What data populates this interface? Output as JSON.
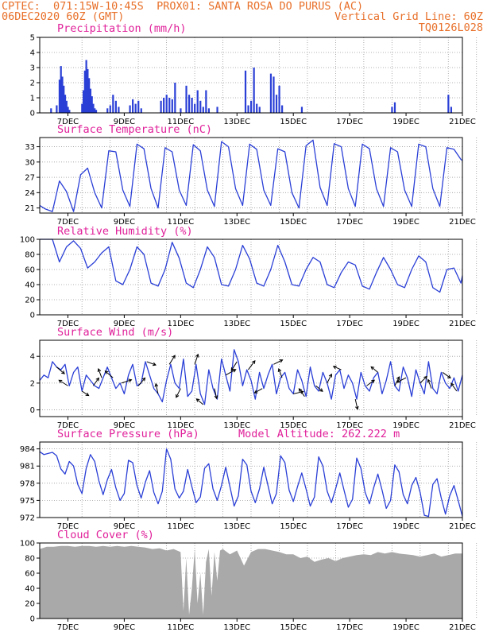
{
  "header": {
    "line1_left": "CPTEC:  071:15W-10:45S",
    "line1_right": "PROX01: SANTA ROSA DO PURUS (AC)",
    "line2_left": "06DEC2020 60Z (GMT)",
    "line2_right": "Vertical Grid Line: 60Z",
    "line3_right": "TQ0126L028"
  },
  "colors": {
    "line": "#2a3fd6",
    "bar": "#2a3fd6",
    "cloud": "#a9a9a9",
    "title": "#e0209a",
    "header": "#e8702a"
  },
  "chart_data": [
    {
      "type": "bar",
      "title": "Precipitation (mm/h)",
      "ylim": [
        0,
        5
      ],
      "yticks": [
        0,
        1,
        2,
        3,
        4,
        5
      ],
      "xlim": [
        6,
        21
      ],
      "xticks": [
        "7DEC",
        "9DEC",
        "11DEC",
        "13DEC",
        "15DEC",
        "17DEC",
        "19DEC",
        "21DEC"
      ],
      "x": [
        6.4,
        6.6,
        6.7,
        6.75,
        6.8,
        6.85,
        6.9,
        6.95,
        7.0,
        7.05,
        7.5,
        7.55,
        7.6,
        7.65,
        7.7,
        7.75,
        7.8,
        7.85,
        7.9,
        7.95,
        8.0,
        8.4,
        8.5,
        8.6,
        8.7,
        8.8,
        9.2,
        9.3,
        9.4,
        9.5,
        9.6,
        10.3,
        10.4,
        10.5,
        10.6,
        10.7,
        10.8,
        11.0,
        11.2,
        11.3,
        11.4,
        11.5,
        11.6,
        11.7,
        11.8,
        11.9,
        12.0,
        12.3,
        13.3,
        13.4,
        13.5,
        13.6,
        13.7,
        13.8,
        14.2,
        14.3,
        14.4,
        14.5,
        14.6,
        15.3,
        18.5,
        18.6,
        20.5,
        20.6
      ],
      "values": [
        0.3,
        0.5,
        2.2,
        3.1,
        2.4,
        1.8,
        1.2,
        0.8,
        0.4,
        0.2,
        0.6,
        1.5,
        2.8,
        3.5,
        2.9,
        2.3,
        1.6,
        1.1,
        0.6,
        0.3,
        0.2,
        0.3,
        0.5,
        1.2,
        0.8,
        0.4,
        0.5,
        0.9,
        0.6,
        0.8,
        0.3,
        0.8,
        1.0,
        1.2,
        1.0,
        0.9,
        2.0,
        0.3,
        1.8,
        1.2,
        1.0,
        0.6,
        1.5,
        0.8,
        0.4,
        1.5,
        0.3,
        0.4,
        2.8,
        0.5,
        0.8,
        3.0,
        0.6,
        0.4,
        2.6,
        2.4,
        1.2,
        1.8,
        0.5,
        0.4,
        0.4,
        0.7,
        1.2,
        0.4
      ]
    },
    {
      "type": "line",
      "title": "Surface Temperature (nC)",
      "ylim": [
        20,
        34.8
      ],
      "yticks": [
        21,
        24,
        27,
        30,
        33
      ],
      "xlim": [
        6,
        21
      ],
      "xticks": [
        "7DEC",
        "9DEC",
        "11DEC",
        "13DEC",
        "15DEC",
        "17DEC",
        "19DEC",
        "21DEC"
      ],
      "x": [
        6.0,
        6.2,
        6.45,
        6.7,
        6.95,
        7.2,
        7.45,
        7.7,
        7.95,
        8.2,
        8.45,
        8.7,
        8.95,
        9.2,
        9.45,
        9.7,
        9.95,
        10.2,
        10.45,
        10.7,
        10.95,
        11.2,
        11.45,
        11.7,
        11.95,
        12.2,
        12.45,
        12.7,
        12.95,
        13.2,
        13.45,
        13.7,
        13.95,
        14.2,
        14.45,
        14.7,
        14.95,
        15.2,
        15.45,
        15.7,
        15.95,
        16.2,
        16.45,
        16.7,
        16.95,
        17.2,
        17.45,
        17.7,
        17.95,
        18.2,
        18.45,
        18.7,
        18.95,
        19.2,
        19.45,
        19.7,
        19.95,
        20.2,
        20.45,
        20.7,
        20.95,
        21.0
      ],
      "values": [
        21.5,
        20.8,
        20.3,
        26.3,
        24.2,
        20.3,
        27.5,
        28.8,
        24.0,
        21.0,
        32.2,
        32.0,
        24.5,
        21.3,
        33.5,
        32.6,
        24.8,
        21.0,
        32.8,
        32.0,
        24.5,
        21.5,
        33.4,
        32.2,
        24.5,
        21.3,
        34.0,
        33.0,
        24.8,
        21.5,
        33.5,
        32.5,
        24.5,
        21.5,
        32.6,
        32.0,
        24.0,
        21.0,
        33.2,
        34.3,
        25.0,
        21.5,
        33.6,
        33.0,
        24.8,
        21.3,
        33.5,
        32.6,
        24.8,
        21.3,
        32.8,
        32.0,
        24.5,
        21.3,
        33.5,
        33.0,
        24.8,
        21.3,
        32.8,
        32.5,
        30.5,
        30.3
      ]
    },
    {
      "type": "line",
      "title": "Relative Humidity (%)",
      "ylim": [
        0,
        100
      ],
      "yticks": [
        0,
        20,
        40,
        60,
        80,
        100
      ],
      "xlim": [
        6,
        21
      ],
      "xticks": [
        "7DEC",
        "9DEC",
        "11DEC",
        "13DEC",
        "15DEC",
        "17DEC",
        "19DEC",
        "21DEC"
      ],
      "x": [
        6.0,
        6.2,
        6.45,
        6.7,
        6.95,
        7.2,
        7.45,
        7.7,
        7.95,
        8.2,
        8.45,
        8.7,
        8.95,
        9.2,
        9.45,
        9.7,
        9.95,
        10.2,
        10.45,
        10.7,
        10.95,
        11.2,
        11.45,
        11.7,
        11.95,
        12.2,
        12.45,
        12.7,
        12.95,
        13.2,
        13.45,
        13.7,
        13.95,
        14.2,
        14.45,
        14.7,
        14.95,
        15.2,
        15.45,
        15.7,
        15.95,
        16.2,
        16.45,
        16.7,
        16.95,
        17.2,
        17.45,
        17.7,
        17.95,
        18.2,
        18.45,
        18.7,
        18.95,
        19.2,
        19.45,
        19.7,
        19.95,
        20.2,
        20.45,
        20.7,
        20.95,
        21.0
      ],
      "values": [
        100,
        100,
        100,
        70,
        90,
        98,
        88,
        62,
        70,
        82,
        90,
        45,
        40,
        60,
        90,
        80,
        42,
        38,
        60,
        96,
        75,
        42,
        36,
        60,
        90,
        76,
        40,
        38,
        60,
        92,
        74,
        42,
        38,
        60,
        92,
        70,
        40,
        38,
        60,
        76,
        70,
        40,
        36,
        56,
        70,
        66,
        38,
        34,
        56,
        76,
        60,
        40,
        36,
        60,
        78,
        70,
        36,
        30,
        60,
        62,
        42,
        52
      ]
    },
    {
      "type": "line",
      "title": "Surface Wind (m/s)",
      "ylim": [
        -0.5,
        5.2
      ],
      "yticks": [
        0,
        2,
        4
      ],
      "xlim": [
        6,
        21
      ],
      "xticks": [
        "7DEC",
        "9DEC",
        "11DEC",
        "13DEC",
        "15DEC",
        "17DEC",
        "19DEC",
        "21DEC"
      ],
      "x": [
        6.0,
        6.15,
        6.3,
        6.45,
        6.6,
        6.75,
        6.9,
        7.05,
        7.2,
        7.35,
        7.5,
        7.65,
        7.8,
        7.95,
        8.1,
        8.25,
        8.4,
        8.55,
        8.7,
        8.85,
        9.0,
        9.15,
        9.3,
        9.45,
        9.6,
        9.75,
        9.9,
        10.05,
        10.2,
        10.35,
        10.5,
        10.65,
        10.8,
        10.95,
        11.1,
        11.25,
        11.4,
        11.55,
        11.7,
        11.85,
        12.0,
        12.15,
        12.3,
        12.45,
        12.6,
        12.75,
        12.9,
        13.05,
        13.2,
        13.35,
        13.5,
        13.65,
        13.8,
        13.95,
        14.1,
        14.25,
        14.4,
        14.55,
        14.7,
        14.85,
        15.0,
        15.15,
        15.3,
        15.45,
        15.6,
        15.75,
        15.9,
        16.05,
        16.2,
        16.35,
        16.5,
        16.65,
        16.8,
        16.95,
        17.1,
        17.25,
        17.4,
        17.55,
        17.7,
        17.85,
        18.0,
        18.15,
        18.3,
        18.45,
        18.6,
        18.75,
        18.9,
        19.05,
        19.2,
        19.35,
        19.5,
        19.65,
        19.8,
        19.95,
        20.1,
        20.25,
        20.4,
        20.55,
        20.7,
        20.85,
        21.0
      ],
      "values": [
        2.2,
        2.6,
        2.4,
        3.6,
        3.2,
        3.0,
        3.4,
        1.8,
        2.8,
        3.2,
        1.4,
        2.6,
        2.2,
        1.8,
        1.6,
        2.4,
        3.2,
        2.4,
        1.6,
        2.0,
        1.2,
        2.6,
        3.4,
        1.8,
        2.0,
        3.6,
        2.6,
        1.6,
        1.2,
        0.6,
        2.2,
        3.4,
        2.0,
        1.6,
        3.8,
        1.0,
        1.4,
        3.4,
        1.2,
        0.4,
        3.0,
        1.6,
        0.8,
        3.8,
        2.6,
        1.4,
        4.5,
        3.6,
        1.8,
        3.0,
        2.2,
        0.8,
        2.8,
        1.6,
        2.6,
        3.4,
        1.2,
        2.4,
        2.8,
        1.6,
        1.2,
        3.0,
        2.2,
        1.0,
        3.2,
        1.8,
        1.4,
        2.8,
        2.0,
        0.8,
        2.6,
        3.0,
        1.6,
        2.6,
        2.0,
        0.8,
        2.8,
        1.8,
        1.4,
        2.4,
        2.8,
        1.2,
        2.2,
        3.6,
        1.8,
        1.4,
        3.2,
        2.4,
        1.0,
        3.0,
        2.0,
        1.2,
        3.6,
        1.6,
        1.2,
        2.8,
        2.0,
        1.6,
        2.4,
        1.4,
        2.6
      ],
      "arrows": [
        {
          "x": 6.6,
          "u": 0.7,
          "v": -0.6
        },
        {
          "x": 7.0,
          "u": -0.8,
          "v": 0.5
        },
        {
          "x": 7.5,
          "u": 0.6,
          "v": -0.4
        },
        {
          "x": 7.9,
          "u": 0.5,
          "v": 0.7
        },
        {
          "x": 8.2,
          "u": -0.3,
          "v": 0.8
        },
        {
          "x": 8.6,
          "u": -0.7,
          "v": 0.6
        },
        {
          "x": 8.9,
          "u": 0.9,
          "v": 0.3
        },
        {
          "x": 9.5,
          "u": 0.6,
          "v": 0.7
        },
        {
          "x": 9.8,
          "u": 0.8,
          "v": -0.3
        },
        {
          "x": 10.2,
          "u": -0.2,
          "v": 0.9
        },
        {
          "x": 10.6,
          "u": 0.5,
          "v": 0.8
        },
        {
          "x": 11.0,
          "u": -0.4,
          "v": -0.8
        },
        {
          "x": 11.5,
          "u": 0.3,
          "v": 0.9
        },
        {
          "x": 11.8,
          "u": -0.6,
          "v": 0.5
        },
        {
          "x": 12.2,
          "u": 0.2,
          "v": -0.9
        },
        {
          "x": 12.6,
          "u": 0.9,
          "v": 0.5
        },
        {
          "x": 13.0,
          "u": -0.5,
          "v": -0.8
        },
        {
          "x": 13.4,
          "u": 0.6,
          "v": 0.8
        },
        {
          "x": 13.9,
          "u": -0.7,
          "v": -0.4
        },
        {
          "x": 14.3,
          "u": 0.8,
          "v": 0.4
        },
        {
          "x": 14.6,
          "u": -0.3,
          "v": 0.8
        },
        {
          "x": 15.0,
          "u": 0.9,
          "v": 0.2
        },
        {
          "x": 15.4,
          "u": -0.5,
          "v": 0.7
        },
        {
          "x": 15.8,
          "u": 0.6,
          "v": -0.5
        },
        {
          "x": 16.2,
          "u": 0.4,
          "v": 0.8
        },
        {
          "x": 16.7,
          "u": -0.7,
          "v": 0.3
        },
        {
          "x": 17.2,
          "u": 0.2,
          "v": -0.9
        },
        {
          "x": 17.6,
          "u": 0.7,
          "v": 0.5
        },
        {
          "x": 18.0,
          "u": -0.6,
          "v": 0.5
        },
        {
          "x": 18.6,
          "u": 0.4,
          "v": 0.8
        },
        {
          "x": 19.0,
          "u": -0.8,
          "v": -0.4
        },
        {
          "x": 19.5,
          "u": 0.6,
          "v": 0.6
        },
        {
          "x": 19.9,
          "u": -0.3,
          "v": 0.8
        },
        {
          "x": 20.3,
          "u": 0.7,
          "v": -0.5
        },
        {
          "x": 20.8,
          "u": -0.5,
          "v": 0.7
        }
      ]
    },
    {
      "type": "line",
      "title": "Surface Pressure (hPa)",
      "subtitle": "Model Altitude: 262.222 m",
      "ylim": [
        972,
        985.2
      ],
      "yticks": [
        972,
        975,
        978,
        981,
        984
      ],
      "xlim": [
        6,
        21
      ],
      "xticks": [
        "7DEC",
        "9DEC",
        "11DEC",
        "13DEC",
        "15DEC",
        "17DEC",
        "19DEC",
        "21DEC"
      ],
      "x": [
        6.0,
        6.15,
        6.3,
        6.45,
        6.6,
        6.75,
        6.9,
        7.05,
        7.2,
        7.35,
        7.5,
        7.65,
        7.8,
        7.95,
        8.1,
        8.25,
        8.4,
        8.55,
        8.7,
        8.85,
        9.0,
        9.15,
        9.3,
        9.45,
        9.6,
        9.75,
        9.9,
        10.05,
        10.2,
        10.35,
        10.5,
        10.65,
        10.8,
        10.95,
        11.1,
        11.25,
        11.4,
        11.55,
        11.7,
        11.85,
        12.0,
        12.15,
        12.3,
        12.45,
        12.6,
        12.75,
        12.9,
        13.05,
        13.2,
        13.35,
        13.5,
        13.65,
        13.8,
        13.95,
        14.1,
        14.25,
        14.4,
        14.55,
        14.7,
        14.85,
        15.0,
        15.15,
        15.3,
        15.45,
        15.6,
        15.75,
        15.9,
        16.05,
        16.2,
        16.35,
        16.5,
        16.65,
        16.8,
        16.95,
        17.1,
        17.25,
        17.4,
        17.55,
        17.7,
        17.85,
        18.0,
        18.15,
        18.3,
        18.45,
        18.6,
        18.75,
        18.9,
        19.05,
        19.2,
        19.35,
        19.5,
        19.65,
        19.8,
        19.95,
        20.1,
        20.25,
        20.4,
        20.55,
        20.7,
        20.85,
        21.0
      ],
      "values": [
        983.5,
        983.0,
        983.2,
        983.4,
        982.8,
        980.5,
        979.6,
        981.8,
        981.0,
        977.8,
        976.2,
        980.6,
        983.0,
        981.8,
        978.4,
        976.0,
        978.6,
        980.4,
        977.2,
        975.0,
        976.2,
        982.0,
        981.6,
        977.6,
        975.4,
        978.2,
        980.2,
        976.4,
        974.4,
        976.6,
        984.0,
        982.2,
        977.0,
        975.4,
        976.6,
        980.4,
        977.4,
        974.6,
        975.6,
        980.6,
        981.4,
        977.0,
        975.0,
        977.6,
        980.8,
        977.4,
        974.0,
        975.8,
        982.2,
        981.2,
        976.6,
        974.6,
        977.0,
        980.8,
        977.6,
        974.4,
        976.2,
        982.8,
        981.6,
        976.8,
        974.8,
        977.4,
        979.8,
        977.0,
        974.0,
        975.6,
        982.6,
        981.0,
        976.6,
        974.6,
        977.0,
        979.8,
        976.8,
        973.8,
        975.2,
        982.4,
        980.6,
        976.4,
        974.4,
        977.2,
        979.6,
        976.8,
        973.6,
        975.0,
        981.2,
        980.0,
        976.0,
        974.4,
        977.6,
        979.0,
        976.4,
        972.4,
        972.2,
        977.8,
        978.8,
        975.4,
        972.6,
        975.8,
        977.6,
        975.0,
        972.2
      ]
    },
    {
      "type": "area",
      "title": "Cloud Cover (%)",
      "ylim": [
        0,
        100
      ],
      "yticks": [
        0,
        20,
        40,
        60,
        80,
        100
      ],
      "xlim": [
        6,
        21
      ],
      "xticks": [
        "7DEC",
        "9DEC",
        "11DEC",
        "13DEC",
        "15DEC",
        "17DEC",
        "19DEC",
        "21DEC"
      ],
      "x": [
        6.0,
        6.25,
        6.5,
        6.75,
        7.0,
        7.25,
        7.5,
        7.75,
        8.0,
        8.25,
        8.5,
        8.75,
        9.0,
        9.25,
        9.5,
        9.75,
        10.0,
        10.25,
        10.5,
        10.75,
        11.0,
        11.1,
        11.2,
        11.3,
        11.4,
        11.5,
        11.6,
        11.7,
        11.8,
        11.9,
        12.0,
        12.1,
        12.2,
        12.3,
        12.4,
        12.5,
        12.75,
        13.0,
        13.25,
        13.5,
        13.75,
        14.0,
        14.25,
        14.5,
        14.75,
        15.0,
        15.25,
        15.5,
        15.75,
        16.0,
        16.25,
        16.5,
        16.75,
        17.0,
        17.25,
        17.5,
        17.75,
        18.0,
        18.25,
        18.5,
        18.75,
        19.0,
        19.25,
        19.5,
        19.75,
        20.0,
        20.25,
        20.5,
        20.75,
        21.0
      ],
      "values": [
        92,
        95,
        95,
        96,
        96,
        95,
        96,
        96,
        95,
        96,
        95,
        96,
        95,
        96,
        95,
        94,
        92,
        93,
        90,
        92,
        88,
        10,
        80,
        5,
        40,
        92,
        20,
        60,
        5,
        75,
        92,
        30,
        88,
        50,
        90,
        92,
        85,
        90,
        70,
        88,
        92,
        92,
        90,
        88,
        85,
        85,
        80,
        82,
        75,
        78,
        80,
        76,
        80,
        82,
        84,
        85,
        84,
        88,
        86,
        88,
        86,
        85,
        84,
        82,
        84,
        86,
        82,
        84,
        86,
        86
      ]
    }
  ]
}
